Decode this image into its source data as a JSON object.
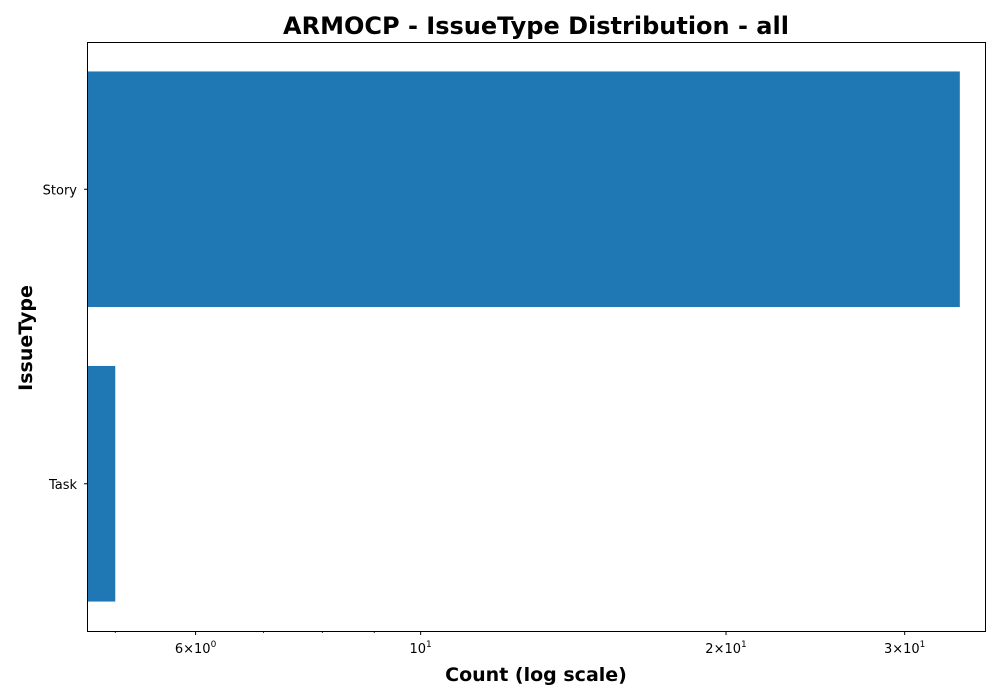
{
  "chart_data": {
    "type": "bar",
    "orientation": "horizontal",
    "title": "ARMOCP - IssueType Distribution - all",
    "xlabel": "Count (log scale)",
    "ylabel": "IssueType",
    "xscale": "log",
    "xlim": [
      4.7,
      36
    ],
    "categories": [
      "Story",
      "Task"
    ],
    "values": [
      34,
      5
    ],
    "bar_color": "#1f77b4",
    "grid": false,
    "legend": "none",
    "xticks": [
      {
        "value": 6,
        "base": "6×10",
        "exp": "0"
      },
      {
        "value": 10,
        "base": "10",
        "exp": "1"
      },
      {
        "value": 20,
        "base": "2×10",
        "exp": "1"
      },
      {
        "value": 30,
        "base": "3×10",
        "exp": "1"
      }
    ]
  }
}
